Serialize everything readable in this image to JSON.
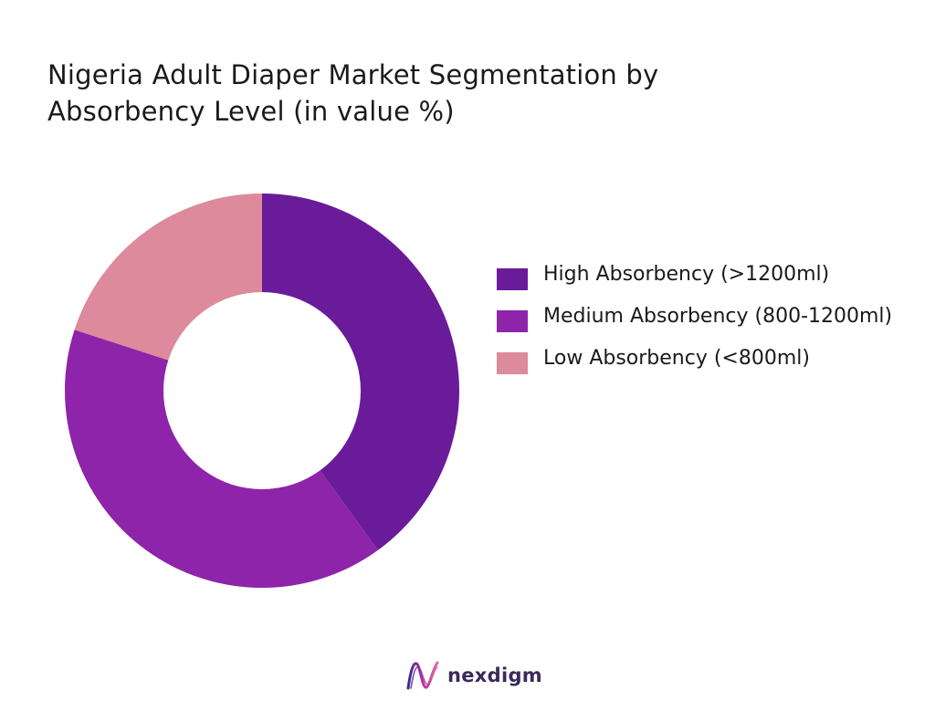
{
  "title": "Nigeria Adult Diaper Market Segmentation by Absorbency Level (in value %)",
  "chart_data": {
    "type": "pie",
    "variant": "donut",
    "title": "Nigeria Adult Diaper Market Segmentation by Absorbency Level (in value %)",
    "categories": [
      "High Absorbency (>1200ml)",
      "Medium Absorbency (800-1200ml)",
      "Low Absorbency (<800ml)"
    ],
    "values": [
      40,
      40,
      20
    ],
    "colors": [
      "#6a1b9a",
      "#8e24aa",
      "#dc8a9c"
    ],
    "legend_position": "right"
  },
  "legend": [
    {
      "label": "High Absorbency (>1200ml)",
      "color": "#6a1b9a"
    },
    {
      "label": "Medium Absorbency (800-1200ml)",
      "color": "#8e24aa"
    },
    {
      "label": "Low Absorbency (<800ml)",
      "color": "#dc8a9c"
    }
  ],
  "logo": {
    "text": "nexdigm",
    "icon": "nexdigm-logo-icon"
  }
}
